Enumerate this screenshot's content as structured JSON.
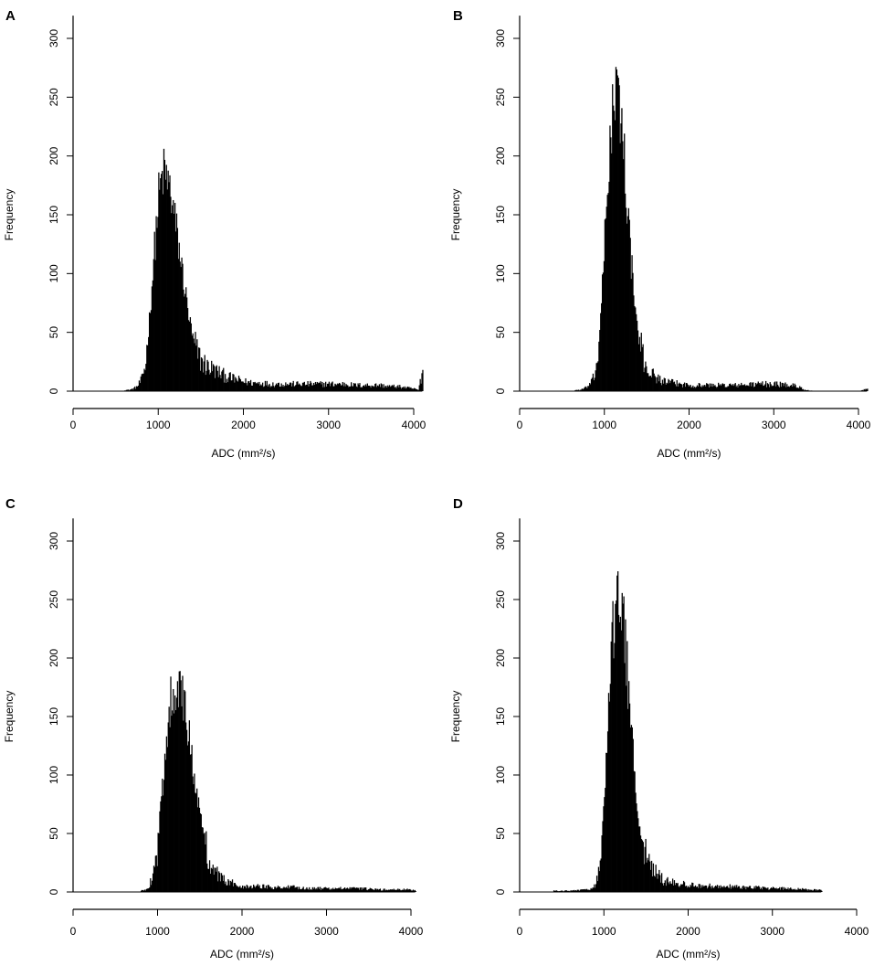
{
  "chart_data": [
    {
      "type": "bar",
      "panel_label": "A",
      "xlabel": "ADC (mm²/s)",
      "ylabel": "Frequency",
      "xlim": [
        0,
        4100
      ],
      "ylim": [
        0,
        310
      ],
      "xticks": [
        0,
        1000,
        2000,
        3000,
        4000
      ],
      "yticks": [
        0,
        50,
        100,
        150,
        200,
        250,
        300
      ],
      "bin_width": 10,
      "grid": false,
      "legend": "none",
      "bar_color": "#000000",
      "series": [
        {
          "x": [
            600,
            650,
            700,
            750,
            800,
            850,
            900,
            950,
            1000,
            1050,
            1100,
            1150,
            1200,
            1250,
            1300,
            1350,
            1400,
            1450,
            1500,
            1550,
            1600,
            1650,
            1700,
            1750,
            1800,
            1850,
            1900,
            1950,
            2000,
            2100,
            2200,
            2300,
            2400,
            2500,
            2600,
            2700,
            2800,
            2900,
            3000,
            3100,
            3200,
            3300,
            3400,
            3500,
            3600,
            3700,
            3800,
            3900,
            4000,
            4050,
            4100
          ],
          "values": [
            1,
            1,
            2,
            4,
            10,
            25,
            70,
            120,
            165,
            185,
            180,
            165,
            140,
            115,
            90,
            65,
            45,
            32,
            26,
            22,
            20,
            18,
            16,
            14,
            12,
            11,
            10,
            9,
            8,
            7,
            7,
            6,
            6,
            6,
            6,
            6,
            6,
            6,
            6,
            6,
            6,
            5,
            5,
            5,
            5,
            4,
            4,
            3,
            2,
            1,
            18
          ]
        }
      ]
    },
    {
      "type": "bar",
      "panel_label": "B",
      "xlabel": "ADC (mm²/s)",
      "ylabel": "Frequency",
      "xlim": [
        0,
        4100
      ],
      "ylim": [
        0,
        310
      ],
      "xticks": [
        0,
        1000,
        2000,
        3000,
        4000
      ],
      "yticks": [
        0,
        50,
        100,
        150,
        200,
        250,
        300
      ],
      "bin_width": 10,
      "grid": false,
      "legend": "none",
      "bar_color": "#000000",
      "series": [
        {
          "x": [
            650,
            700,
            750,
            800,
            850,
            900,
            950,
            1000,
            1050,
            1100,
            1150,
            1200,
            1250,
            1300,
            1350,
            1400,
            1450,
            1500,
            1550,
            1600,
            1650,
            1700,
            1800,
            1900,
            2000,
            2200,
            2400,
            2600,
            2800,
            3000,
            3200,
            3300,
            3350,
            3500,
            3800,
            4000,
            4100
          ],
          "values": [
            1,
            1,
            2,
            4,
            8,
            20,
            60,
            130,
            200,
            245,
            250,
            230,
            175,
            120,
            75,
            45,
            28,
            20,
            15,
            12,
            10,
            8,
            7,
            6,
            5,
            5,
            5,
            5,
            6,
            6,
            5,
            4,
            1,
            0,
            0,
            0,
            2
          ]
        }
      ]
    },
    {
      "type": "bar",
      "panel_label": "C",
      "xlabel": "ADC (mm²/s)",
      "ylabel": "Frequency",
      "xlim": [
        0,
        4100
      ],
      "ylim": [
        0,
        310
      ],
      "xticks": [
        0,
        1000,
        2000,
        3000,
        4000
      ],
      "yticks": [
        0,
        50,
        100,
        150,
        200,
        250,
        300
      ],
      "bin_width": 10,
      "grid": false,
      "legend": "none",
      "bar_color": "#000000",
      "series": [
        {
          "x": [
            800,
            850,
            900,
            950,
            1000,
            1050,
            1100,
            1150,
            1200,
            1250,
            1300,
            1350,
            1400,
            1450,
            1500,
            1550,
            1600,
            1650,
            1700,
            1750,
            1800,
            1900,
            2000,
            2200,
            2400,
            2600,
            2800,
            3000,
            3200,
            3400,
            3600,
            3800,
            4000,
            4050
          ],
          "values": [
            1,
            2,
            6,
            18,
            45,
            85,
            135,
            165,
            180,
            175,
            160,
            140,
            115,
            90,
            65,
            45,
            30,
            22,
            16,
            12,
            9,
            7,
            5,
            5,
            4,
            4,
            3,
            3,
            3,
            3,
            2,
            2,
            2,
            1
          ]
        }
      ]
    },
    {
      "type": "bar",
      "panel_label": "D",
      "xlabel": "ADC (mm²/s)",
      "ylabel": "Frequency",
      "xlim": [
        0,
        4100
      ],
      "ylim": [
        0,
        310
      ],
      "xticks": [
        0,
        1000,
        2000,
        3000,
        4000
      ],
      "yticks": [
        0,
        50,
        100,
        150,
        200,
        250,
        300
      ],
      "bin_width": 10,
      "grid": false,
      "legend": "none",
      "bar_color": "#000000",
      "series": [
        {
          "x": [
            400,
            600,
            800,
            900,
            950,
            1000,
            1050,
            1100,
            1150,
            1200,
            1250,
            1300,
            1350,
            1400,
            1450,
            1500,
            1550,
            1600,
            1650,
            1700,
            1800,
            1900,
            2000,
            2200,
            2400,
            2600,
            2800,
            3000,
            3200,
            3400,
            3550,
            3580
          ],
          "values": [
            1,
            1,
            2,
            6,
            25,
            80,
            160,
            225,
            250,
            240,
            210,
            160,
            110,
            70,
            45,
            30,
            22,
            17,
            13,
            10,
            8,
            7,
            6,
            5,
            5,
            4,
            4,
            3,
            3,
            2,
            2,
            1
          ]
        }
      ]
    }
  ]
}
